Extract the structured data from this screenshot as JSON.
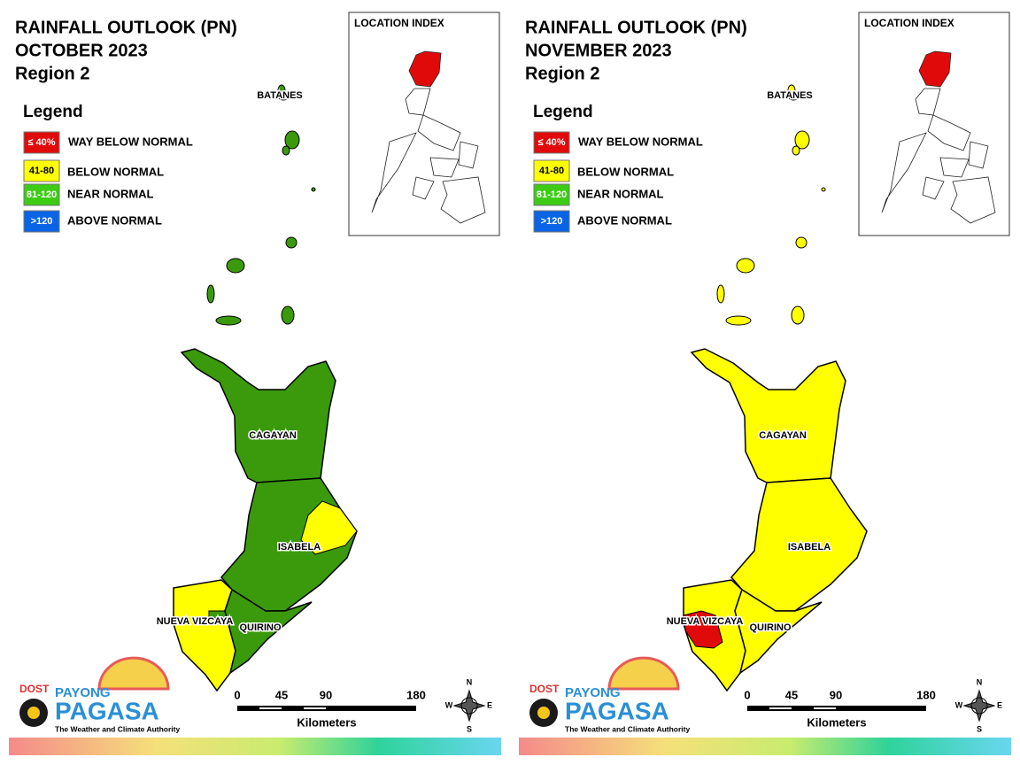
{
  "panels": [
    {
      "title": [
        "RAINFALL OUTLOOK (PN)",
        "OCTOBER 2023",
        "Region 2"
      ],
      "legend": {
        "title": "Legend",
        "items": [
          {
            "code": "≤ 40%",
            "label": "WAY BELOW NORMAL",
            "color": "#e10a0a"
          },
          {
            "code": "41-80",
            "label": "BELOW NORMAL",
            "color": "#ffff00"
          },
          {
            "code": "81-120",
            "label": "NEAR NORMAL",
            "color": "#3ccc14"
          },
          {
            "code": ">120",
            "label": "ABOVE NORMAL",
            "color": "#0a64e6"
          }
        ]
      },
      "location_index": "LOCATION INDEX",
      "provinces": [
        {
          "name": "BATANES",
          "color": "#3a9a0c"
        },
        {
          "name": "CAGAYAN",
          "color": "#3a9a0c"
        },
        {
          "name": "ISABELA",
          "color": "#3a9a0c",
          "patch_color": "#ffff00"
        },
        {
          "name": "NUEVA VIZCAYA",
          "color": "#ffff00",
          "patch_color": "#3a9a0c"
        },
        {
          "name": "QUIRINO",
          "color": "#3a9a0c"
        }
      ]
    },
    {
      "title": [
        "RAINFALL OUTLOOK (PN)",
        "NOVEMBER 2023",
        "Region 2"
      ],
      "legend": {
        "title": "Legend",
        "items": [
          {
            "code": "≤ 40%",
            "label": "WAY BELOW NORMAL",
            "color": "#e10a0a"
          },
          {
            "code": "41-80",
            "label": "BELOW NORMAL",
            "color": "#ffff00"
          },
          {
            "code": "81-120",
            "label": "NEAR NORMAL",
            "color": "#3ccc14"
          },
          {
            "code": ">120",
            "label": "ABOVE NORMAL",
            "color": "#0a64e6"
          }
        ]
      },
      "location_index": "LOCATION INDEX",
      "provinces": [
        {
          "name": "BATANES",
          "color": "#ffff00"
        },
        {
          "name": "CAGAYAN",
          "color": "#ffff00"
        },
        {
          "name": "ISABELA",
          "color": "#ffff00"
        },
        {
          "name": "NUEVA VIZCAYA",
          "color": "#ffff00",
          "patch_color": "#e10a0a"
        },
        {
          "name": "QUIRINO",
          "color": "#ffff00"
        }
      ]
    }
  ],
  "scale": {
    "ticks": [
      0,
      45,
      90,
      180
    ],
    "unit": "Kilometers"
  },
  "compass": {
    "n": "N",
    "e": "E",
    "s": "S",
    "w": "W"
  },
  "logo": {
    "agency": "DOST",
    "brand_top": "PAYONG",
    "brand": "PAGASA",
    "tagline": "The Weather and Climate Authority"
  }
}
